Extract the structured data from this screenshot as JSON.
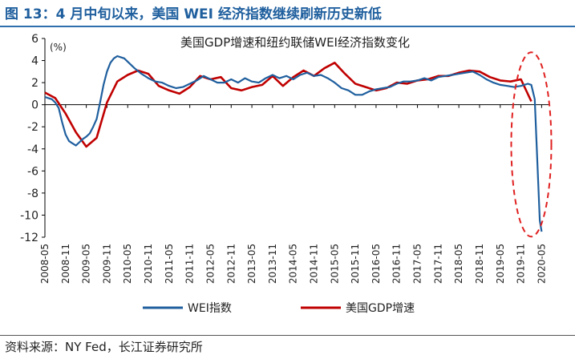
{
  "figure_title": "图 13：4 月中旬以来，美国 WEI 经济指数继续刷新历史新低",
  "source_note": "资料来源：NY Fed，长江证券研究所",
  "chart_data": {
    "type": "line",
    "title": "美国GDP增速和纽约联储WEI经济指数变化",
    "unit_label": "(%)",
    "ylim": [
      -12,
      6
    ],
    "yticks": [
      6,
      4,
      2,
      0,
      -2,
      -4,
      -6,
      -8,
      -10,
      -12
    ],
    "xlim": [
      "2008-05",
      "2020-07"
    ],
    "xticks": [
      "2008-05",
      "2008-11",
      "2009-05",
      "2009-11",
      "2010-05",
      "2010-11",
      "2011-05",
      "2011-11",
      "2012-05",
      "2012-11",
      "2013-05",
      "2013-11",
      "2014-05",
      "2014-11",
      "2015-05",
      "2015-11",
      "2016-05",
      "2016-11",
      "2017-05",
      "2017-11",
      "2018-05",
      "2018-11",
      "2019-05",
      "2019-11",
      "2020-05"
    ],
    "grid": false,
    "legend_position": "bottom",
    "annotation": {
      "type": "dashed-ellipse",
      "around": "2019-11 to 2020-05 collapse",
      "color": "#e02020"
    },
    "series": [
      {
        "name": "WEI指数",
        "color": "#1f5f9e",
        "points": [
          [
            "2008-05",
            0.7
          ],
          [
            "2008-06",
            0.6
          ],
          [
            "2008-07",
            0.5
          ],
          [
            "2008-08",
            0.2
          ],
          [
            "2008-09",
            -0.3
          ],
          [
            "2008-10",
            -1.6
          ],
          [
            "2008-11",
            -2.7
          ],
          [
            "2008-12",
            -3.3
          ],
          [
            "2009-01",
            -3.5
          ],
          [
            "2009-02",
            -3.7
          ],
          [
            "2009-03",
            -3.4
          ],
          [
            "2009-04",
            -3.1
          ],
          [
            "2009-05",
            -2.9
          ],
          [
            "2009-06",
            -2.6
          ],
          [
            "2009-07",
            -2.0
          ],
          [
            "2009-08",
            -1.3
          ],
          [
            "2009-09",
            0.2
          ],
          [
            "2009-10",
            1.8
          ],
          [
            "2009-11",
            3.0
          ],
          [
            "2009-12",
            3.8
          ],
          [
            "2010-01",
            4.2
          ],
          [
            "2010-02",
            4.4
          ],
          [
            "2010-03",
            4.3
          ],
          [
            "2010-04",
            4.2
          ],
          [
            "2010-05",
            3.9
          ],
          [
            "2010-07",
            3.3
          ],
          [
            "2010-09",
            2.8
          ],
          [
            "2010-11",
            2.4
          ],
          [
            "2011-01",
            2.1
          ],
          [
            "2011-03",
            2.0
          ],
          [
            "2011-05",
            1.7
          ],
          [
            "2011-07",
            1.5
          ],
          [
            "2011-09",
            1.6
          ],
          [
            "2011-11",
            1.9
          ],
          [
            "2012-01",
            2.2
          ],
          [
            "2012-03",
            2.6
          ],
          [
            "2012-05",
            2.3
          ],
          [
            "2012-07",
            2.0
          ],
          [
            "2012-09",
            2.0
          ],
          [
            "2012-11",
            2.3
          ],
          [
            "2013-01",
            2.0
          ],
          [
            "2013-03",
            2.4
          ],
          [
            "2013-05",
            2.1
          ],
          [
            "2013-07",
            2.0
          ],
          [
            "2013-09",
            2.4
          ],
          [
            "2013-11",
            2.7
          ],
          [
            "2014-01",
            2.4
          ],
          [
            "2014-03",
            2.6
          ],
          [
            "2014-05",
            2.3
          ],
          [
            "2014-07",
            2.7
          ],
          [
            "2014-09",
            2.9
          ],
          [
            "2014-11",
            2.6
          ],
          [
            "2015-01",
            2.7
          ],
          [
            "2015-03",
            2.4
          ],
          [
            "2015-05",
            2.0
          ],
          [
            "2015-07",
            1.5
          ],
          [
            "2015-09",
            1.3
          ],
          [
            "2015-11",
            0.9
          ],
          [
            "2016-01",
            0.9
          ],
          [
            "2016-03",
            1.2
          ],
          [
            "2016-05",
            1.4
          ],
          [
            "2016-07",
            1.5
          ],
          [
            "2016-09",
            1.6
          ],
          [
            "2016-11",
            1.9
          ],
          [
            "2017-01",
            2.1
          ],
          [
            "2017-03",
            2.1
          ],
          [
            "2017-05",
            2.2
          ],
          [
            "2017-07",
            2.4
          ],
          [
            "2017-09",
            2.2
          ],
          [
            "2017-11",
            2.5
          ],
          [
            "2018-01",
            2.6
          ],
          [
            "2018-03",
            2.7
          ],
          [
            "2018-05",
            2.8
          ],
          [
            "2018-07",
            2.9
          ],
          [
            "2018-09",
            3.0
          ],
          [
            "2018-11",
            2.7
          ],
          [
            "2019-01",
            2.3
          ],
          [
            "2019-03",
            2.0
          ],
          [
            "2019-05",
            1.8
          ],
          [
            "2019-07",
            1.7
          ],
          [
            "2019-09",
            1.6
          ],
          [
            "2019-11",
            1.7
          ],
          [
            "2020-01",
            1.9
          ],
          [
            "2020-02",
            1.8
          ],
          [
            "2020-03",
            0.5
          ],
          [
            "2020-03-15",
            -3.0
          ],
          [
            "2020-04-01",
            -7.0
          ],
          [
            "2020-04-15",
            -10.5
          ],
          [
            "2020-05",
            -11.5
          ]
        ]
      },
      {
        "name": "美国GDP增速",
        "color": "#c00000",
        "points": [
          [
            "2008-05",
            1.1
          ],
          [
            "2008-08",
            0.6
          ],
          [
            "2008-11",
            -0.8
          ],
          [
            "2009-02",
            -2.5
          ],
          [
            "2009-05",
            -3.8
          ],
          [
            "2009-08",
            -3.0
          ],
          [
            "2009-11",
            0.2
          ],
          [
            "2010-02",
            2.1
          ],
          [
            "2010-05",
            2.7
          ],
          [
            "2010-08",
            3.1
          ],
          [
            "2010-11",
            2.8
          ],
          [
            "2011-02",
            1.7
          ],
          [
            "2011-05",
            1.3
          ],
          [
            "2011-08",
            1.0
          ],
          [
            "2011-11",
            1.6
          ],
          [
            "2012-02",
            2.6
          ],
          [
            "2012-05",
            2.3
          ],
          [
            "2012-08",
            2.5
          ],
          [
            "2012-11",
            1.5
          ],
          [
            "2013-02",
            1.3
          ],
          [
            "2013-05",
            1.6
          ],
          [
            "2013-08",
            1.8
          ],
          [
            "2013-11",
            2.6
          ],
          [
            "2014-02",
            1.7
          ],
          [
            "2014-05",
            2.5
          ],
          [
            "2014-08",
            3.1
          ],
          [
            "2014-11",
            2.6
          ],
          [
            "2015-02",
            3.3
          ],
          [
            "2015-05",
            3.8
          ],
          [
            "2015-08",
            2.8
          ],
          [
            "2015-11",
            1.9
          ],
          [
            "2016-02",
            1.6
          ],
          [
            "2016-05",
            1.3
          ],
          [
            "2016-08",
            1.5
          ],
          [
            "2016-11",
            2.0
          ],
          [
            "2017-02",
            1.9
          ],
          [
            "2017-05",
            2.2
          ],
          [
            "2017-08",
            2.3
          ],
          [
            "2017-11",
            2.6
          ],
          [
            "2018-02",
            2.6
          ],
          [
            "2018-05",
            2.9
          ],
          [
            "2018-08",
            3.1
          ],
          [
            "2018-11",
            3.0
          ],
          [
            "2019-02",
            2.5
          ],
          [
            "2019-05",
            2.2
          ],
          [
            "2019-08",
            2.1
          ],
          [
            "2019-11",
            2.3
          ],
          [
            "2020-02",
            0.3
          ]
        ]
      }
    ]
  }
}
